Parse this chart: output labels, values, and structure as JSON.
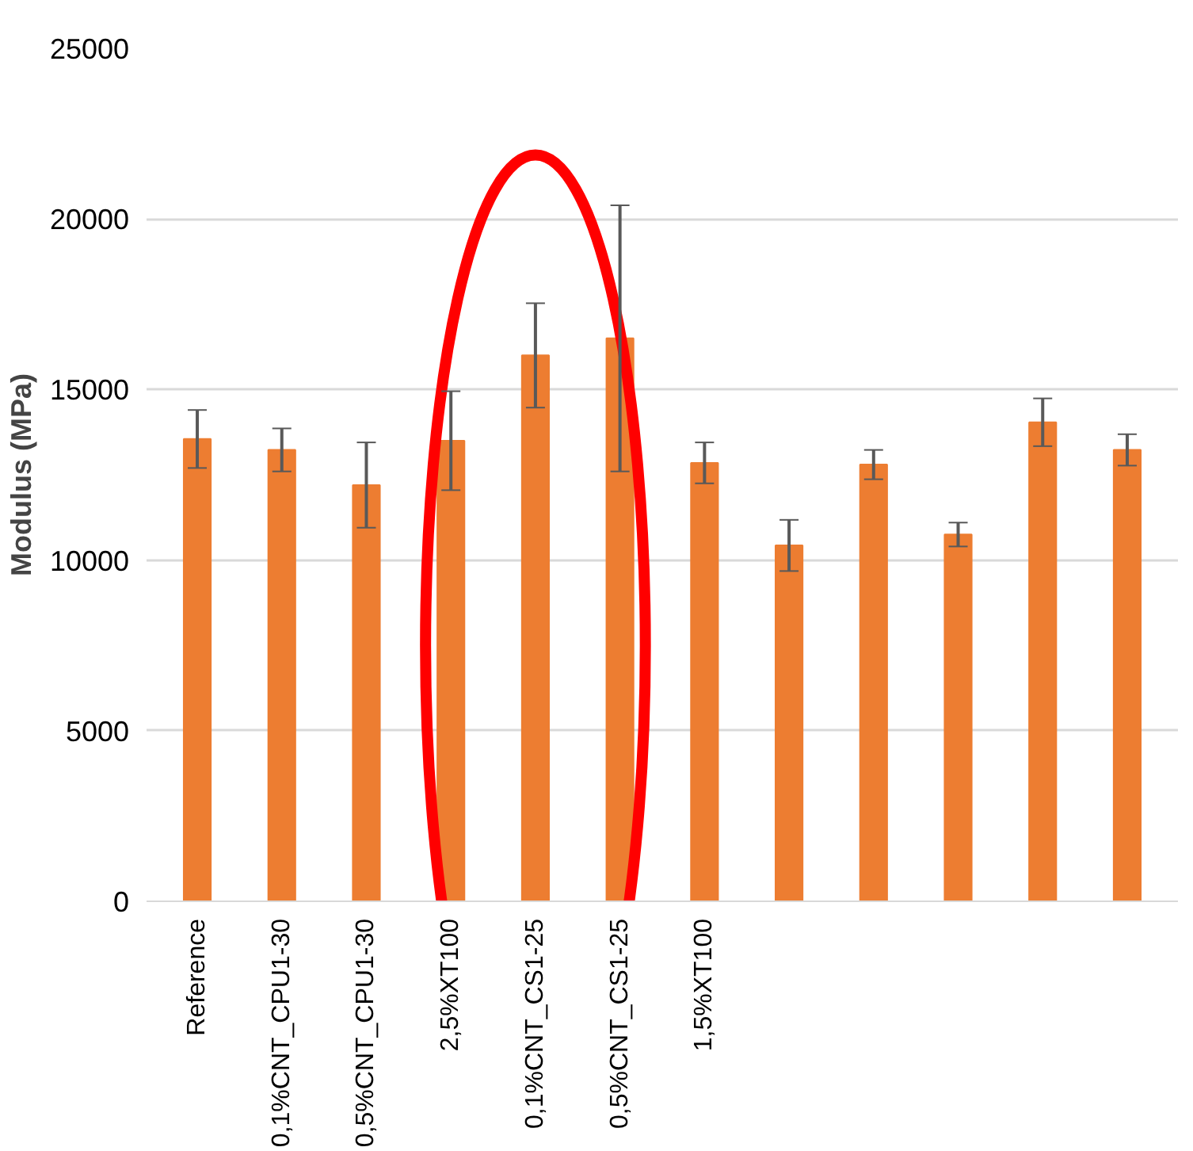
{
  "chart_data": {
    "type": "bar",
    "ylabel": "Modulus (MPa)",
    "categories": [
      "Reference",
      "0,1%CNT_CPU1-30",
      "0,5%CNT_CPU1-30",
      "2,5%XT100",
      "0,1%CNT_CS1-25",
      "0,5%CNT_CS1-25",
      "1,5%XT100",
      null,
      null,
      null,
      null,
      null
    ],
    "values": [
      13550,
      13230,
      12200,
      13500,
      16000,
      16500,
      12850,
      10430,
      12800,
      10750,
      14040,
      13230
    ],
    "errors": [
      850,
      630,
      1250,
      1450,
      1530,
      3900,
      600,
      750,
      430,
      350,
      700,
      460
    ],
    "color": "#ed7d31",
    "ylim": [
      0,
      25000
    ],
    "yticks": [
      0,
      5000,
      10000,
      15000,
      20000,
      25000
    ],
    "grid": "y"
  }
}
